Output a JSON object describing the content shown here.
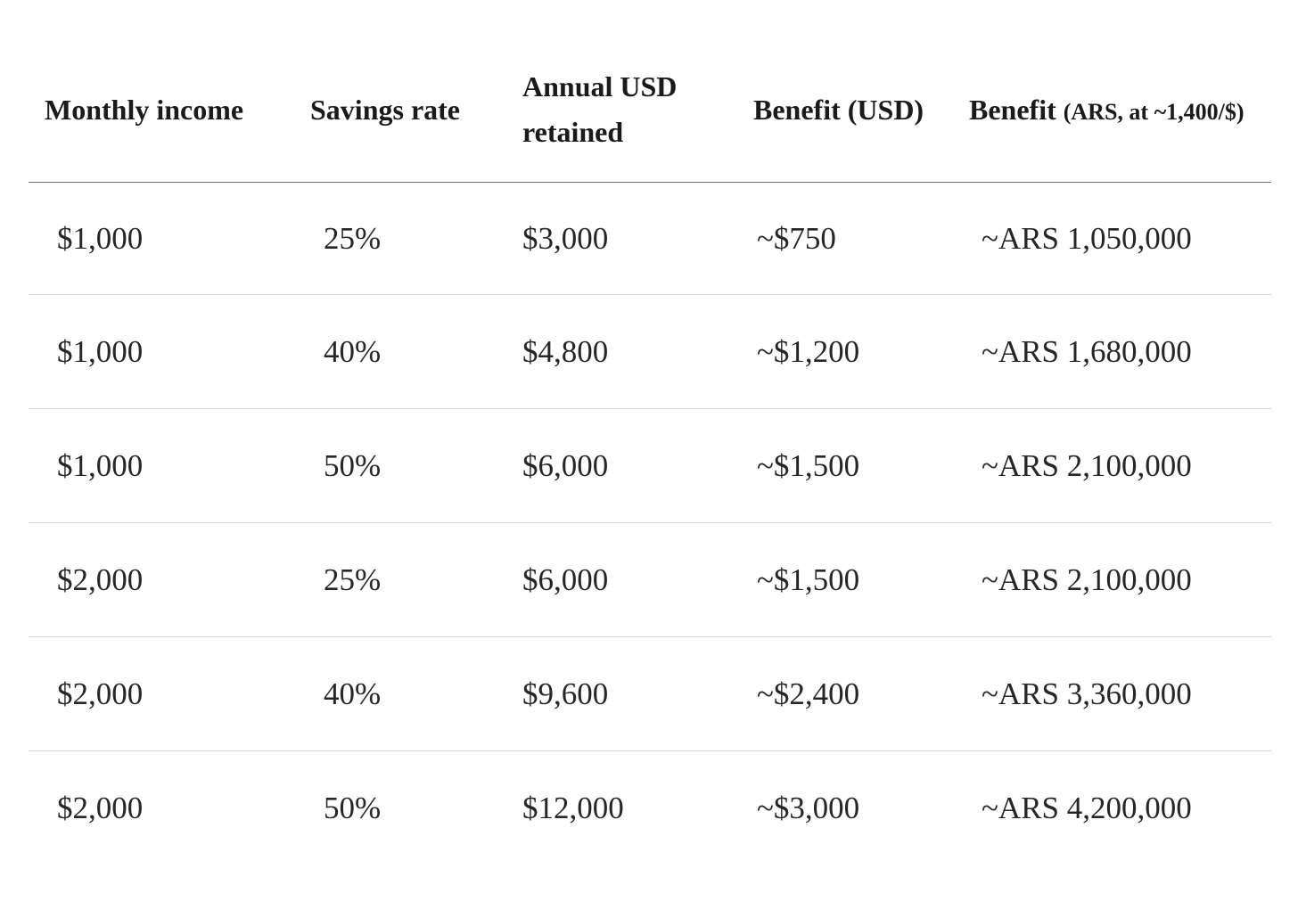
{
  "table": {
    "headers": {
      "monthly_income": "Monthly income",
      "savings_rate": "Savings rate",
      "annual_line1": "Annual USD",
      "annual_line2": "retained",
      "benefit_usd": "Benefit (USD)",
      "benefit_ars_main": "Benefit ",
      "benefit_ars_note": "(ARS, at ~1,400/$)"
    },
    "rows": [
      [
        "$1,000",
        "25%",
        "$3,000",
        "~$750",
        "~ARS 1,050,000"
      ],
      [
        "$1,000",
        "40%",
        "$4,800",
        "~$1,200",
        "~ARS 1,680,000"
      ],
      [
        "$1,000",
        "50%",
        "$6,000",
        "~$1,500",
        "~ARS 2,100,000"
      ],
      [
        "$2,000",
        "25%",
        "$6,000",
        "~$1,500",
        "~ARS 2,100,000"
      ],
      [
        "$2,000",
        "40%",
        "$9,600",
        "~$2,400",
        "~ARS 3,360,000"
      ],
      [
        "$2,000",
        "50%",
        "$12,000",
        "~$3,000",
        "~ARS 4,200,000"
      ]
    ]
  }
}
